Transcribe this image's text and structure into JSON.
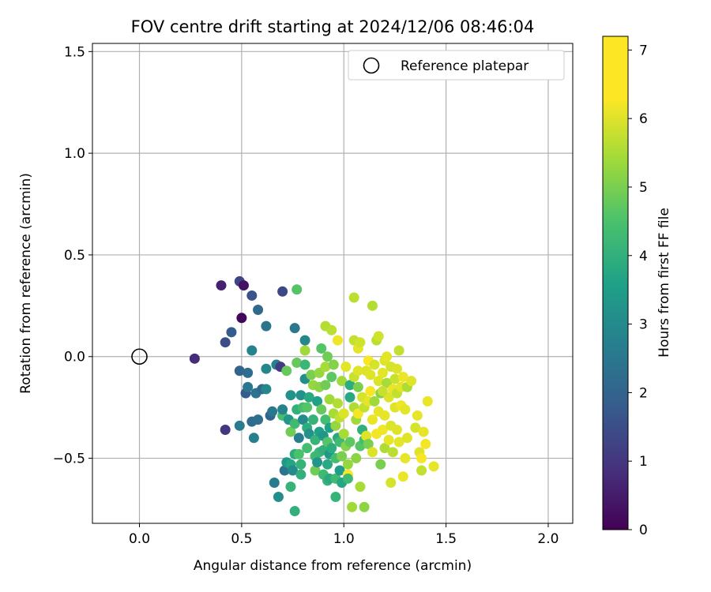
{
  "chart_data": {
    "type": "scatter",
    "title": "FOV centre drift starting at 2024/12/06 08:46:04",
    "xlabel": "Angular distance from reference (arcmin)",
    "ylabel": "Rotation from reference (arcmin)",
    "xlim": [
      -0.23,
      2.12
    ],
    "ylim": [
      -0.82,
      1.54
    ],
    "x_ticks": [
      0.0,
      0.5,
      1.0,
      1.5,
      2.0
    ],
    "x_tick_labels": [
      "0.0",
      "0.5",
      "1.0",
      "1.5",
      "2.0"
    ],
    "y_ticks": [
      -0.5,
      0.0,
      0.5,
      1.0,
      1.5
    ],
    "y_tick_labels": [
      "−0.5",
      "0.0",
      "0.5",
      "1.0",
      "1.5"
    ],
    "grid": true,
    "legend": {
      "placement": "top-right",
      "entries": [
        {
          "label": "Reference platepar",
          "marker": "open-circle"
        }
      ]
    },
    "reference_point": {
      "x": 0.0,
      "y": 0.0
    },
    "colorbar": {
      "label": "Hours from first FF file",
      "range": [
        0,
        7.2
      ],
      "ticks": [
        0,
        1,
        2,
        3,
        4,
        5,
        6,
        7
      ],
      "tick_labels": [
        "0",
        "1",
        "2",
        "3",
        "4",
        "5",
        "6",
        "7"
      ],
      "colormap": "viridis"
    },
    "series": [
      {
        "points": [
          {
            "x": 0.27,
            "y": -0.01,
            "c": 0.8
          },
          {
            "x": 0.4,
            "y": 0.35,
            "c": 0.6
          },
          {
            "x": 0.42,
            "y": 0.07,
            "c": 1.5
          },
          {
            "x": 0.45,
            "y": 0.12,
            "c": 1.8
          },
          {
            "x": 0.49,
            "y": 0.37,
            "c": 1.3
          },
          {
            "x": 0.5,
            "y": 0.19,
            "c": 0.1
          },
          {
            "x": 0.51,
            "y": 0.35,
            "c": 0.3
          },
          {
            "x": 0.55,
            "y": 0.3,
            "c": 1.6
          },
          {
            "x": 0.58,
            "y": 0.23,
            "c": 2.1
          },
          {
            "x": 0.62,
            "y": 0.15,
            "c": 2.4
          },
          {
            "x": 0.7,
            "y": 0.32,
            "c": 1.4
          },
          {
            "x": 0.77,
            "y": 0.33,
            "c": 4.6
          },
          {
            "x": 0.76,
            "y": 0.14,
            "c": 2.5
          },
          {
            "x": 0.81,
            "y": 0.08,
            "c": 2.9
          },
          {
            "x": 0.42,
            "y": -0.36,
            "c": 1.0
          },
          {
            "x": 0.49,
            "y": -0.34,
            "c": 2.6
          },
          {
            "x": 0.49,
            "y": -0.07,
            "c": 2.0
          },
          {
            "x": 0.52,
            "y": -0.18,
            "c": 1.8
          },
          {
            "x": 0.53,
            "y": -0.08,
            "c": 2.2
          },
          {
            "x": 0.53,
            "y": -0.15,
            "c": 2.5
          },
          {
            "x": 0.55,
            "y": -0.32,
            "c": 2.2
          },
          {
            "x": 0.55,
            "y": 0.03,
            "c": 2.8
          },
          {
            "x": 0.56,
            "y": -0.4,
            "c": 2.7
          },
          {
            "x": 0.57,
            "y": -0.18,
            "c": 2.4
          },
          {
            "x": 0.58,
            "y": -0.31,
            "c": 2.3
          },
          {
            "x": 0.6,
            "y": -0.16,
            "c": 2.1
          },
          {
            "x": 0.62,
            "y": -0.16,
            "c": 2.9
          },
          {
            "x": 0.62,
            "y": -0.06,
            "c": 2.9
          },
          {
            "x": 0.64,
            "y": -0.29,
            "c": 2.0
          },
          {
            "x": 0.65,
            "y": -0.27,
            "c": 2.5
          },
          {
            "x": 0.66,
            "y": -0.62,
            "c": 2.6
          },
          {
            "x": 0.67,
            "y": -0.04,
            "c": 2.7
          },
          {
            "x": 0.68,
            "y": -0.69,
            "c": 3.1
          },
          {
            "x": 0.69,
            "y": -0.05,
            "c": 1.1
          },
          {
            "x": 0.7,
            "y": -0.29,
            "c": 4.4
          },
          {
            "x": 0.7,
            "y": -0.26,
            "c": 2.8
          },
          {
            "x": 0.71,
            "y": -0.56,
            "c": 2.4
          },
          {
            "x": 0.72,
            "y": -0.52,
            "c": 3.4
          },
          {
            "x": 0.72,
            "y": -0.07,
            "c": 4.8
          },
          {
            "x": 0.73,
            "y": -0.31,
            "c": 3.3
          },
          {
            "x": 0.74,
            "y": -0.19,
            "c": 3.2
          },
          {
            "x": 0.74,
            "y": -0.37,
            "c": 4.9
          },
          {
            "x": 0.74,
            "y": -0.53,
            "c": 3.7
          },
          {
            "x": 0.74,
            "y": -0.64,
            "c": 4.1
          },
          {
            "x": 0.75,
            "y": -0.56,
            "c": 3.0
          },
          {
            "x": 0.76,
            "y": -0.33,
            "c": 4.3
          },
          {
            "x": 0.76,
            "y": -0.48,
            "c": 3.9
          },
          {
            "x": 0.76,
            "y": -0.76,
            "c": 4.0
          },
          {
            "x": 0.77,
            "y": -0.26,
            "c": 4.0
          },
          {
            "x": 0.77,
            "y": -0.03,
            "c": 4.8
          },
          {
            "x": 0.78,
            "y": -0.48,
            "c": 4.5
          },
          {
            "x": 0.78,
            "y": -0.4,
            "c": 2.7
          },
          {
            "x": 0.79,
            "y": -0.19,
            "c": 3.2
          },
          {
            "x": 0.79,
            "y": -0.53,
            "c": 4.1
          },
          {
            "x": 0.79,
            "y": -0.58,
            "c": 4.0
          },
          {
            "x": 0.8,
            "y": -0.31,
            "c": 3.0
          },
          {
            "x": 0.8,
            "y": -0.25,
            "c": 4.4
          },
          {
            "x": 0.81,
            "y": -0.04,
            "c": 4.2
          },
          {
            "x": 0.81,
            "y": -0.11,
            "c": 3.1
          },
          {
            "x": 0.81,
            "y": 0.03,
            "c": 5.4
          },
          {
            "x": 0.82,
            "y": -0.45,
            "c": 4.4
          },
          {
            "x": 0.82,
            "y": -0.35,
            "c": 3.9
          },
          {
            "x": 0.82,
            "y": -0.25,
            "c": 4.6
          },
          {
            "x": 0.83,
            "y": -0.38,
            "c": 3.2
          },
          {
            "x": 0.83,
            "y": -0.2,
            "c": 3.8
          },
          {
            "x": 0.84,
            "y": -0.09,
            "c": 5.0
          },
          {
            "x": 0.85,
            "y": -0.14,
            "c": 5.3
          },
          {
            "x": 0.85,
            "y": -0.31,
            "c": 4.1
          },
          {
            "x": 0.86,
            "y": -0.41,
            "c": 4.1
          },
          {
            "x": 0.86,
            "y": -0.49,
            "c": 4.3
          },
          {
            "x": 0.86,
            "y": -0.56,
            "c": 4.9
          },
          {
            "x": 0.87,
            "y": -0.22,
            "c": 3.6
          },
          {
            "x": 0.87,
            "y": -0.52,
            "c": 3.3
          },
          {
            "x": 0.88,
            "y": -0.37,
            "c": 3.6
          },
          {
            "x": 0.88,
            "y": -0.47,
            "c": 4.2
          },
          {
            "x": 0.88,
            "y": -0.15,
            "c": 5.2
          },
          {
            "x": 0.88,
            "y": -0.08,
            "c": 5.3
          },
          {
            "x": 0.89,
            "y": 0.04,
            "c": 4.6
          },
          {
            "x": 0.89,
            "y": -0.26,
            "c": 4.8
          },
          {
            "x": 0.9,
            "y": -0.39,
            "c": 3.3
          },
          {
            "x": 0.9,
            "y": -0.46,
            "c": 4.0
          },
          {
            "x": 0.9,
            "y": -0.58,
            "c": 4.3
          },
          {
            "x": 0.91,
            "y": -0.31,
            "c": 4.4
          },
          {
            "x": 0.91,
            "y": 0.15,
            "c": 5.7
          },
          {
            "x": 0.91,
            "y": -0.14,
            "c": 4.9
          },
          {
            "x": 0.91,
            "y": -0.05,
            "c": 5.5
          },
          {
            "x": 0.92,
            "y": -0.61,
            "c": 4.1
          },
          {
            "x": 0.92,
            "y": -0.53,
            "c": 3.8
          },
          {
            "x": 0.92,
            "y": -0.42,
            "c": 4.6
          },
          {
            "x": 0.92,
            "y": -0.0,
            "c": 4.9
          },
          {
            "x": 0.93,
            "y": -0.6,
            "c": 3.8
          },
          {
            "x": 0.93,
            "y": -0.35,
            "c": 3.6
          },
          {
            "x": 0.93,
            "y": -0.48,
            "c": 3.4
          },
          {
            "x": 0.93,
            "y": -0.21,
            "c": 5.4
          },
          {
            "x": 0.94,
            "y": -0.1,
            "c": 4.7
          },
          {
            "x": 0.94,
            "y": 0.13,
            "c": 5.8
          },
          {
            "x": 0.94,
            "y": -0.45,
            "c": 3.9
          },
          {
            "x": 0.95,
            "y": -0.28,
            "c": 5.5
          },
          {
            "x": 0.95,
            "y": -0.04,
            "c": 5.1
          },
          {
            "x": 0.96,
            "y": -0.69,
            "c": 4.1
          },
          {
            "x": 0.96,
            "y": -0.6,
            "c": 4.3
          },
          {
            "x": 0.96,
            "y": -0.5,
            "c": 4.4
          },
          {
            "x": 0.96,
            "y": -0.34,
            "c": 5.3
          },
          {
            "x": 0.97,
            "y": 0.08,
            "c": 6.8
          },
          {
            "x": 0.97,
            "y": -0.4,
            "c": 3.8
          },
          {
            "x": 0.97,
            "y": -0.23,
            "c": 5.7
          },
          {
            "x": 0.98,
            "y": -0.56,
            "c": 3.5
          },
          {
            "x": 0.98,
            "y": -0.42,
            "c": 4.3
          },
          {
            "x": 0.98,
            "y": -0.3,
            "c": 5.9
          },
          {
            "x": 0.99,
            "y": -0.12,
            "c": 5.4
          },
          {
            "x": 0.99,
            "y": -0.62,
            "c": 3.7
          },
          {
            "x": 0.99,
            "y": -0.49,
            "c": 5.0
          },
          {
            "x": 1.0,
            "y": -0.38,
            "c": 5.5
          },
          {
            "x": 1.0,
            "y": -0.28,
            "c": 6.3
          },
          {
            "x": 1.01,
            "y": -0.05,
            "c": 6.5
          },
          {
            "x": 1.01,
            "y": -0.44,
            "c": 5.1
          },
          {
            "x": 1.02,
            "y": -0.53,
            "c": 5.3
          },
          {
            "x": 1.02,
            "y": -0.58,
            "c": 7.1
          },
          {
            "x": 1.02,
            "y": -0.6,
            "c": 4.3
          },
          {
            "x": 1.03,
            "y": -0.2,
            "c": 3.8
          },
          {
            "x": 1.03,
            "y": -0.42,
            "c": 4.7
          },
          {
            "x": 1.03,
            "y": -0.14,
            "c": 3.9
          },
          {
            "x": 1.04,
            "y": -0.74,
            "c": 5.4
          },
          {
            "x": 1.05,
            "y": 0.08,
            "c": 5.9
          },
          {
            "x": 1.05,
            "y": -0.25,
            "c": 5.6
          },
          {
            "x": 1.05,
            "y": -0.1,
            "c": 6.0
          },
          {
            "x": 1.05,
            "y": 0.29,
            "c": 5.8
          },
          {
            "x": 1.06,
            "y": -0.31,
            "c": 5.4
          },
          {
            "x": 1.06,
            "y": -0.5,
            "c": 5.2
          },
          {
            "x": 1.07,
            "y": -0.07,
            "c": 6.4
          },
          {
            "x": 1.07,
            "y": 0.04,
            "c": 6.5
          },
          {
            "x": 1.07,
            "y": -0.15,
            "c": 5.0
          },
          {
            "x": 1.07,
            "y": -0.28,
            "c": 6.9
          },
          {
            "x": 1.08,
            "y": -0.64,
            "c": 5.5
          },
          {
            "x": 1.08,
            "y": 0.07,
            "c": 6.1
          },
          {
            "x": 1.08,
            "y": -0.44,
            "c": 4.6
          },
          {
            "x": 1.09,
            "y": -0.36,
            "c": 4.0
          },
          {
            "x": 1.09,
            "y": -0.2,
            "c": 6.2
          },
          {
            "x": 1.1,
            "y": -0.25,
            "c": 5.9
          },
          {
            "x": 1.1,
            "y": -0.41,
            "c": 4.4
          },
          {
            "x": 1.1,
            "y": -0.74,
            "c": 5.2
          },
          {
            "x": 1.11,
            "y": -0.07,
            "c": 6.3
          },
          {
            "x": 1.11,
            "y": -0.39,
            "c": 6.4
          },
          {
            "x": 1.12,
            "y": -0.22,
            "c": 6.6
          },
          {
            "x": 1.12,
            "y": -0.02,
            "c": 7.1
          },
          {
            "x": 1.12,
            "y": -0.43,
            "c": 5.0
          },
          {
            "x": 1.13,
            "y": -0.17,
            "c": 7.0
          },
          {
            "x": 1.13,
            "y": -0.09,
            "c": 6.4
          },
          {
            "x": 1.14,
            "y": 0.25,
            "c": 5.7
          },
          {
            "x": 1.14,
            "y": -0.31,
            "c": 6.7
          },
          {
            "x": 1.14,
            "y": -0.47,
            "c": 6.3
          },
          {
            "x": 1.15,
            "y": -0.04,
            "c": 6.2
          },
          {
            "x": 1.15,
            "y": -0.22,
            "c": 5.4
          },
          {
            "x": 1.16,
            "y": 0.08,
            "c": 5.8
          },
          {
            "x": 1.16,
            "y": -0.38,
            "c": 6.9
          },
          {
            "x": 1.17,
            "y": -0.12,
            "c": 6.3
          },
          {
            "x": 1.17,
            "y": 0.1,
            "c": 6.1
          },
          {
            "x": 1.17,
            "y": -0.27,
            "c": 6.6
          },
          {
            "x": 1.18,
            "y": -0.53,
            "c": 5.0
          },
          {
            "x": 1.18,
            "y": -0.18,
            "c": 5.1
          },
          {
            "x": 1.19,
            "y": -0.36,
            "c": 6.8
          },
          {
            "x": 1.19,
            "y": -0.08,
            "c": 6.5
          },
          {
            "x": 1.2,
            "y": -0.02,
            "c": 6.3
          },
          {
            "x": 1.2,
            "y": -0.29,
            "c": 6.6
          },
          {
            "x": 1.2,
            "y": -0.45,
            "c": 5.6
          },
          {
            "x": 1.21,
            "y": -0.13,
            "c": 5.5
          },
          {
            "x": 1.21,
            "y": 0.0,
            "c": 6.5
          },
          {
            "x": 1.22,
            "y": -0.2,
            "c": 6.3
          },
          {
            "x": 1.22,
            "y": -0.41,
            "c": 6.6
          },
          {
            "x": 1.23,
            "y": -0.62,
            "c": 6.2
          },
          {
            "x": 1.23,
            "y": -0.05,
            "c": 6.2
          },
          {
            "x": 1.23,
            "y": -0.34,
            "c": 6.3
          },
          {
            "x": 1.24,
            "y": -0.16,
            "c": 6.7
          },
          {
            "x": 1.24,
            "y": -0.47,
            "c": 5.8
          },
          {
            "x": 1.25,
            "y": -0.25,
            "c": 6.4
          },
          {
            "x": 1.25,
            "y": -0.11,
            "c": 6.0
          },
          {
            "x": 1.26,
            "y": -0.36,
            "c": 6.4
          },
          {
            "x": 1.26,
            "y": -0.18,
            "c": 5.9
          },
          {
            "x": 1.27,
            "y": -0.42,
            "c": 6.5
          },
          {
            "x": 1.27,
            "y": 0.03,
            "c": 5.9
          },
          {
            "x": 1.28,
            "y": -0.24,
            "c": 6.8
          },
          {
            "x": 1.28,
            "y": -0.15,
            "c": 6.5
          },
          {
            "x": 1.29,
            "y": -0.59,
            "c": 6.7
          },
          {
            "x": 1.29,
            "y": -0.1,
            "c": 6.7
          },
          {
            "x": 1.3,
            "y": -0.26,
            "c": 6.5
          },
          {
            "x": 1.3,
            "y": -0.5,
            "c": 6.6
          },
          {
            "x": 1.31,
            "y": -0.4,
            "c": 6.4
          },
          {
            "x": 1.31,
            "y": -0.15,
            "c": 5.6
          },
          {
            "x": 1.33,
            "y": -0.12,
            "c": 6.4
          },
          {
            "x": 1.35,
            "y": -0.35,
            "c": 6.2
          },
          {
            "x": 1.36,
            "y": -0.29,
            "c": 6.6
          },
          {
            "x": 1.37,
            "y": -0.47,
            "c": 6.4
          },
          {
            "x": 1.38,
            "y": -0.56,
            "c": 5.9
          },
          {
            "x": 1.38,
            "y": -0.5,
            "c": 7.0
          },
          {
            "x": 1.39,
            "y": -0.37,
            "c": 6.6
          },
          {
            "x": 1.4,
            "y": -0.43,
            "c": 6.9
          },
          {
            "x": 1.41,
            "y": -0.22,
            "c": 6.7
          },
          {
            "x": 1.44,
            "y": -0.54,
            "c": 6.6
          },
          {
            "x": 1.19,
            "y": -0.17,
            "c": 6.0
          },
          {
            "x": 1.26,
            "y": -0.06,
            "c": 6.3
          }
        ]
      }
    ]
  }
}
